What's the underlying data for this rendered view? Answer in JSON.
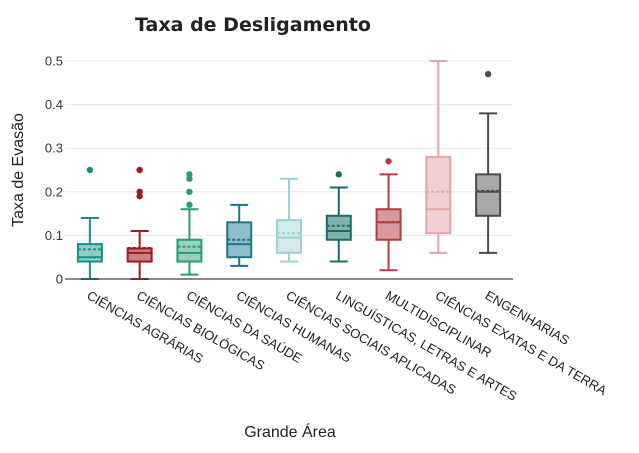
{
  "chart_data": {
    "type": "box",
    "title": "Taxa de Desligamento",
    "xlabel": "Grande Área",
    "ylabel": "Taxa de Evasão",
    "ylim": [
      0,
      0.5
    ],
    "yticks": [
      0,
      0.1,
      0.2,
      0.3,
      0.4,
      0.5
    ],
    "ytick_labels": [
      "0",
      "0.1",
      "0.2",
      "0.3",
      "0.4",
      "0.5"
    ],
    "grid": true,
    "categories": [
      "CIÊNCIAS AGRÁRIAS",
      "CIÊNCIAS BIOLÓGICAS",
      "CIÊNCIAS DA SAÚDE",
      "CIÊNCIAS HUMANAS",
      "CIÊNCIAS SOCIAIS APLICADAS",
      "LINGUÍSTICAS, LETRAS E ARTES",
      "MULTIDISCIPLINAR",
      "CIÊNCIAS EXATAS E DA TERRA",
      "ENGENHARIAS"
    ],
    "series": [
      {
        "name": "CIÊNCIAS AGRÁRIAS",
        "color": "#1a8f8a",
        "fill": "#8fcdc9",
        "min": 0.0,
        "q1": 0.04,
        "median": 0.05,
        "q3": 0.08,
        "max": 0.14,
        "mean": 0.068,
        "outliers": [
          0.25
        ]
      },
      {
        "name": "CIÊNCIAS BIOLÓGICAS",
        "color": "#9b1b1f",
        "fill": "#cc8083",
        "min": 0.0,
        "q1": 0.04,
        "median": 0.06,
        "q3": 0.07,
        "max": 0.11,
        "mean": 0.071,
        "outliers": [
          0.19,
          0.2,
          0.25
        ]
      },
      {
        "name": "CIÊNCIAS DA SAÚDE",
        "color": "#2a9a78",
        "fill": "#97d0bd",
        "min": 0.01,
        "q1": 0.04,
        "median": 0.06,
        "q3": 0.09,
        "max": 0.16,
        "mean": 0.074,
        "outliers": [
          0.17,
          0.2,
          0.23,
          0.24
        ]
      },
      {
        "name": "CIÊNCIAS HUMANAS",
        "color": "#1e7585",
        "fill": "#8ebfc9",
        "min": 0.03,
        "q1": 0.05,
        "median": 0.08,
        "q3": 0.13,
        "max": 0.17,
        "mean": 0.09,
        "outliers": []
      },
      {
        "name": "CIÊNCIAS SOCIAIS APLICADAS",
        "color": "#9fd1d3",
        "fill": "#d2eaeb",
        "min": 0.04,
        "q1": 0.06,
        "median": 0.095,
        "q3": 0.135,
        "max": 0.23,
        "mean": 0.105,
        "outliers": []
      },
      {
        "name": "LINGUÍSTICAS, LETRAS E ARTES",
        "color": "#1b6b66",
        "fill": "#82b2ae",
        "min": 0.04,
        "q1": 0.09,
        "median": 0.11,
        "q3": 0.145,
        "max": 0.21,
        "mean": 0.122,
        "outliers": [
          0.24
        ]
      },
      {
        "name": "MULTIDISCIPLINAR",
        "color": "#b43c44",
        "fill": "#d69a9d",
        "min": 0.02,
        "q1": 0.09,
        "median": 0.13,
        "q3": 0.16,
        "max": 0.24,
        "mean": 0.131,
        "outliers": [
          0.27
        ]
      },
      {
        "name": "CIÊNCIAS EXATAS E DA TERRA",
        "color": "#e0a6a9",
        "fill": "#efd0d1",
        "min": 0.06,
        "q1": 0.105,
        "median": 0.16,
        "q3": 0.28,
        "max": 0.5,
        "mean": 0.2,
        "outliers": []
      },
      {
        "name": "ENGENHARIAS",
        "color": "#4a4a4a",
        "fill": "#a8a8a8",
        "min": 0.06,
        "q1": 0.145,
        "median": 0.2,
        "q3": 0.24,
        "max": 0.38,
        "mean": 0.202,
        "outliers": [
          0.47
        ]
      }
    ]
  }
}
